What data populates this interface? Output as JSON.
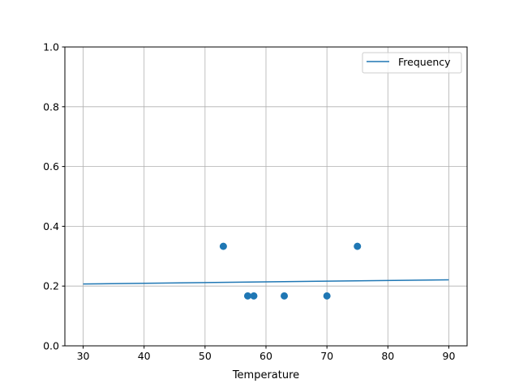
{
  "chart_data": {
    "type": "scatter+line",
    "title": "",
    "xlabel": "Temperature",
    "ylabel": "",
    "xlim": [
      27,
      93
    ],
    "ylim": [
      0,
      1
    ],
    "xticks": [
      30,
      40,
      50,
      60,
      70,
      80,
      90
    ],
    "xtick_labels": [
      "30",
      "40",
      "50",
      "60",
      "70",
      "80",
      "90"
    ],
    "yticks": [
      0,
      0.2,
      0.4,
      0.6,
      0.8,
      1.0
    ],
    "ytick_labels": [
      "0.0",
      "0.2",
      "0.4",
      "0.6",
      "0.8",
      "1.0"
    ],
    "grid": true,
    "legend": {
      "placement": "top-right",
      "entries": [
        "Frequency"
      ]
    },
    "color": "#1f77b4",
    "line": {
      "name": "Frequency",
      "x": [
        30,
        90
      ],
      "y": [
        0.207,
        0.221
      ]
    },
    "scatter": {
      "x": [
        53,
        57,
        58,
        63,
        70,
        75
      ],
      "y": [
        0.333,
        0.167,
        0.167,
        0.167,
        0.167,
        0.333
      ]
    }
  }
}
